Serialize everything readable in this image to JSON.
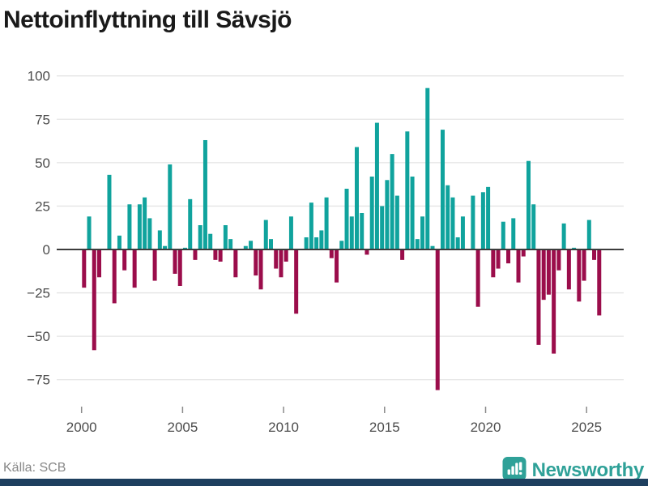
{
  "title": "Nettoinflyttning till Sävsjö",
  "source": "Källa: SCB",
  "logo_text": "Newsworthy",
  "colors": {
    "positive": "#10a39d",
    "negative": "#9b0d4b",
    "grid": "#e4e4e4",
    "zero_line": "#3c3c3c",
    "axis_text": "#4d4d4d",
    "tick": "#8a8a8a",
    "footer_text": "#878787",
    "logo": "#2fa198",
    "bottom_bar": "#1e3f5f",
    "title": "#1a1a1a"
  },
  "chart_data": {
    "type": "bar",
    "title": "Nettoinflyttning till Sävsjö",
    "xlabel": "",
    "ylabel": "",
    "ylim": [
      -87,
      104
    ],
    "grid": true,
    "legend": false,
    "yticks": [
      100,
      75,
      50,
      25,
      0,
      -25,
      -50,
      -75
    ],
    "ytick_labels": [
      "100",
      "75",
      "50",
      "25",
      "0",
      "−25",
      "−50",
      "−75"
    ],
    "xticks": [
      2000,
      2005,
      2010,
      2015,
      2020,
      2025
    ],
    "categories": [
      "2000Q1",
      "2000Q2",
      "2000Q3",
      "2000Q4",
      "2001Q1",
      "2001Q2",
      "2001Q3",
      "2001Q4",
      "2002Q1",
      "2002Q2",
      "2002Q3",
      "2002Q4",
      "2003Q1",
      "2003Q2",
      "2003Q3",
      "2003Q4",
      "2004Q1",
      "2004Q2",
      "2004Q3",
      "2004Q4",
      "2005Q1",
      "2005Q2",
      "2005Q3",
      "2005Q4",
      "2006Q1",
      "2006Q2",
      "2006Q3",
      "2006Q4",
      "2007Q1",
      "2007Q2",
      "2007Q3",
      "2007Q4",
      "2008Q1",
      "2008Q2",
      "2008Q3",
      "2008Q4",
      "2009Q1",
      "2009Q2",
      "2009Q3",
      "2009Q4",
      "2010Q1",
      "2010Q2",
      "2010Q3",
      "2010Q4",
      "2011Q1",
      "2011Q2",
      "2011Q3",
      "2011Q4",
      "2012Q1",
      "2012Q2",
      "2012Q3",
      "2012Q4",
      "2013Q1",
      "2013Q2",
      "2013Q3",
      "2013Q4",
      "2014Q1",
      "2014Q2",
      "2014Q3",
      "2014Q4",
      "2015Q1",
      "2015Q2",
      "2015Q3",
      "2015Q4",
      "2016Q1",
      "2016Q2",
      "2016Q3",
      "2016Q4",
      "2017Q1",
      "2017Q2",
      "2017Q3",
      "2017Q4",
      "2018Q1",
      "2018Q2",
      "2018Q3",
      "2018Q4",
      "2019Q1",
      "2019Q2",
      "2019Q3",
      "2019Q4",
      "2020Q1",
      "2020Q2",
      "2020Q3",
      "2020Q4",
      "2021Q1",
      "2021Q2",
      "2021Q3",
      "2021Q4",
      "2022Q1",
      "2022Q2",
      "2022Q3",
      "2022Q4",
      "2023Q1",
      "2023Q2",
      "2023Q3",
      "2023Q4",
      "2024Q1",
      "2024Q2",
      "2024Q3",
      "2024Q4",
      "2025Q1",
      "2025Q2",
      "2025Q3"
    ],
    "values": [
      -22,
      19,
      -58,
      -16,
      0,
      43,
      -31,
      8,
      -12,
      26,
      -22,
      26,
      30,
      18,
      -18,
      11,
      2,
      49,
      -14,
      -21,
      1,
      29,
      -6,
      14,
      63,
      9,
      -6,
      -7,
      14,
      6,
      -16,
      0,
      2,
      5,
      -15,
      -23,
      17,
      6,
      -11,
      -16,
      -7,
      19,
      -37,
      0,
      7,
      27,
      7,
      11,
      30,
      -5,
      -19,
      5,
      35,
      19,
      59,
      21,
      -3,
      42,
      73,
      25,
      40,
      55,
      31,
      -6,
      68,
      42,
      6,
      19,
      93,
      2,
      -81,
      69,
      37,
      30,
      7,
      19,
      0,
      31,
      -33,
      33,
      36,
      -16,
      -11,
      16,
      -8,
      18,
      -19,
      -4,
      51,
      26,
      -55,
      -29,
      -26,
      -60,
      -12,
      15,
      -23,
      1,
      -30,
      -18,
      17,
      -6,
      -38
    ]
  }
}
